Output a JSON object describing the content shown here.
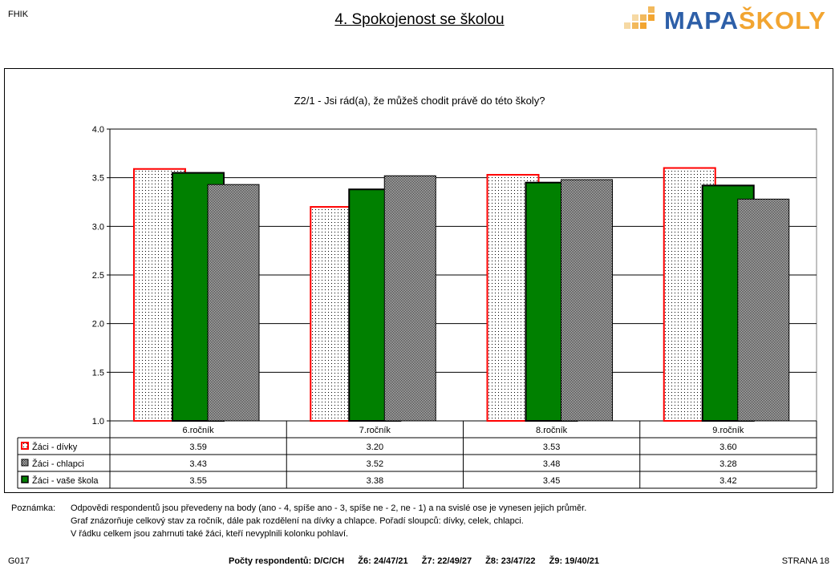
{
  "header": {
    "org": "FHIK",
    "title": "4. Spokojenost se školou",
    "logo": {
      "part1": "MAPA",
      "part2": "ŠKOLY"
    }
  },
  "colors": {
    "girls_border": "#ff0000",
    "school": "#008000",
    "boys_fill": "#c0c0c0",
    "logo_blue": "#2d5fa8",
    "logo_orange": "#f2a531"
  },
  "chart_data": {
    "type": "bar",
    "title": "Z2/1 - Jsi rád(a), že můžeš chodit právě do této školy?",
    "categories": [
      "6.ročník",
      "7.ročník",
      "8.ročník",
      "9.ročník"
    ],
    "ylim": [
      1.0,
      4.0
    ],
    "yticks": [
      "1.0",
      "1.5",
      "2.0",
      "2.5",
      "3.0",
      "3.5",
      "4.0"
    ],
    "grid": true,
    "series": [
      {
        "name": "Žáci - dívky",
        "values": [
          3.59,
          3.2,
          3.53,
          3.6
        ],
        "labels": [
          "3.59",
          "3.20",
          "3.53",
          "3.60"
        ]
      },
      {
        "name": "Žáci - vaše škola",
        "values": [
          3.55,
          3.38,
          3.45,
          3.42
        ],
        "labels": [
          "3.55",
          "3.38",
          "3.45",
          "3.42"
        ]
      },
      {
        "name": "Žáci - chlapci",
        "values": [
          3.43,
          3.52,
          3.48,
          3.28
        ],
        "labels": [
          "3.43",
          "3.52",
          "3.48",
          "3.28"
        ]
      }
    ],
    "table_order": [
      "Žáci - dívky",
      "Žáci - chlapci",
      "Žáci - vaše škola"
    ]
  },
  "note": {
    "label": "Poznámka:",
    "lines": [
      "Odpovědi respondentů jsou převedeny na body (ano - 4, spíše ano - 3, spíše ne - 2, ne - 1) a na svislé ose je vynesen jejich průměr.",
      "Graf znázorňuje celkový stav za ročník, dále pak rozdělení na dívky a chlapce. Pořadí sloupců: dívky, celek, chlapci.",
      "V řádku celkem jsou zahrnuti také žáci, kteří nevyplnili kolonku pohlaví."
    ]
  },
  "footer": {
    "code": "G017",
    "respondents_label": "Počty respondentů: D/C/CH",
    "counts": [
      "Ž6: 24/47/21",
      "Ž7: 22/49/27",
      "Ž8: 23/47/22",
      "Ž9: 19/40/21"
    ],
    "page": "STRANA 18"
  }
}
